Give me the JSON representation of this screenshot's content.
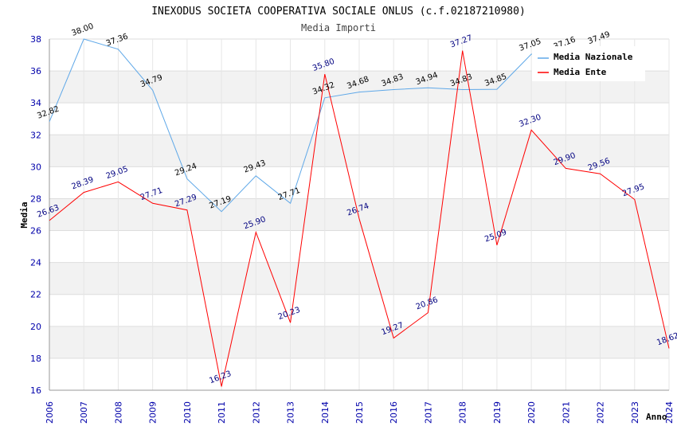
{
  "chart_data": {
    "type": "line",
    "title": "INEXODUS SOCIETA COOPERATIVA SOCIALE ONLUS (c.f.02187210980)",
    "subtitle": "Media Importi",
    "xlabel": "Anno",
    "ylabel": "Media",
    "ylim": [
      16,
      38
    ],
    "yticks": [
      "16",
      "18",
      "20",
      "22",
      "24",
      "26",
      "28",
      "30",
      "32",
      "34",
      "36",
      "38"
    ],
    "x": [
      "2006",
      "2007",
      "2008",
      "2009",
      "2010",
      "2011",
      "2012",
      "2013",
      "2014",
      "2015",
      "2016",
      "2017",
      "2018",
      "2019",
      "2020",
      "2021",
      "2022",
      "2023",
      "2024"
    ],
    "grid": true,
    "legend_position": "top-right",
    "series": [
      {
        "name": "Media Nazionale",
        "color": "#5fa8e8",
        "values": [
          32.82,
          38.0,
          37.36,
          34.79,
          29.24,
          27.19,
          29.43,
          27.71,
          34.32,
          34.68,
          34.83,
          34.94,
          34.83,
          34.85,
          37.05,
          37.16,
          37.49,
          null,
          null
        ],
        "labels": [
          "32.82",
          "38.00",
          "37.36",
          "34.79",
          "29.24",
          "27.19",
          "29.43",
          "27.71",
          "34.32",
          "34.68",
          "34.83",
          "34.94",
          "34.83",
          "34.85",
          "37.05",
          "37.16",
          "37.49",
          "",
          ""
        ]
      },
      {
        "name": "Media Ente",
        "color": "#ff0000",
        "values": [
          26.63,
          28.39,
          29.05,
          27.71,
          27.29,
          16.23,
          25.9,
          20.23,
          35.8,
          26.74,
          19.27,
          20.86,
          37.27,
          25.09,
          32.3,
          29.9,
          29.56,
          27.95,
          18.62
        ],
        "labels": [
          "26.63",
          "28.39",
          "29.05",
          "27.71",
          "27.29",
          "16.23",
          "25.90",
          "20.23",
          "35.80",
          "26.74",
          "19.27",
          "20.86",
          "37.27",
          "25.09",
          "32.30",
          "29.90",
          "29.56",
          "27.95",
          "18.62"
        ]
      }
    ]
  }
}
